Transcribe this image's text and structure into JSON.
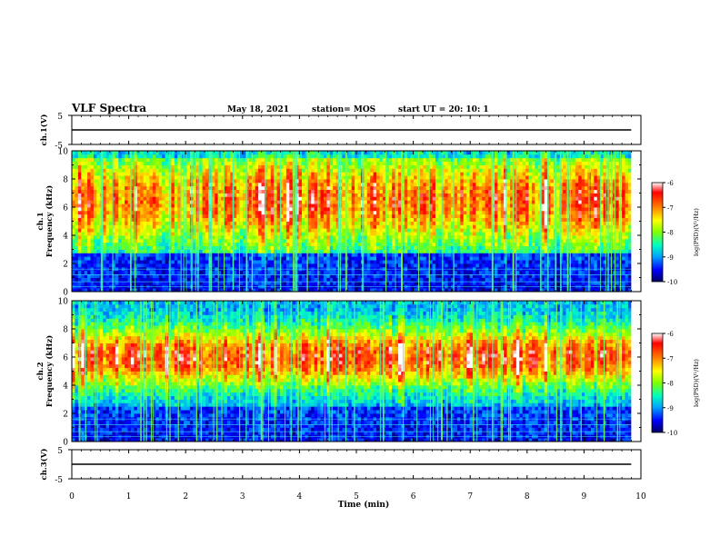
{
  "header": {
    "title": "VLF Spectra",
    "date": "May 18, 2021",
    "station": "station= MOS",
    "start_ut": "start UT =  20: 10: 1"
  },
  "chart_data": [
    {
      "type": "line",
      "panel": "ch1-voltage",
      "ylabel": "ch.1(V)",
      "ylim": [
        -5,
        5
      ],
      "y_ticks": [
        "5",
        "-5"
      ],
      "xlim": [
        0,
        10
      ],
      "series": [
        {
          "x_range": [
            0,
            9.83
          ],
          "baseline": 0
        }
      ]
    },
    {
      "type": "heatmap",
      "panel": "ch1-spectrogram",
      "ylabel": "ch.1\nFrequency (kHz)",
      "ylim": [
        0,
        10
      ],
      "y_ticks": [
        "0",
        "2",
        "4",
        "6",
        "8",
        "10"
      ],
      "xlim": [
        0,
        9.83
      ],
      "colorbar": {
        "label": "log(PSD)(V²/Hz)",
        "range": [
          -10,
          -6
        ],
        "ticks": [
          "-6",
          "-7",
          "-8",
          "-9",
          "-10"
        ],
        "colors": [
          "#000060",
          "#0000ff",
          "#00a0ff",
          "#00ffc0",
          "#80ff00",
          "#ffff00",
          "#ff8000",
          "#ff0000",
          "#ffffff"
        ]
      },
      "band_peak_khz": [
        4,
        9
      ]
    },
    {
      "type": "heatmap",
      "panel": "ch2-spectrogram",
      "ylabel": "ch.2\nFrequency (kHz)",
      "ylim": [
        0,
        10
      ],
      "y_ticks": [
        "0",
        "2",
        "4",
        "6",
        "8",
        "10"
      ],
      "xlim": [
        0,
        9.83
      ],
      "colorbar": {
        "label": "log(PSD)(V²/Hz)",
        "range": [
          -10,
          -6
        ],
        "ticks": [
          "-6",
          "-7",
          "-8",
          "-9",
          "-10"
        ],
        "colors": [
          "#000060",
          "#0000ff",
          "#00a0ff",
          "#00ffc0",
          "#80ff00",
          "#ffff00",
          "#ff8000",
          "#ff0000",
          "#ffffff"
        ]
      },
      "band_peak_khz": [
        4,
        8
      ]
    },
    {
      "type": "line",
      "panel": "ch3-voltage",
      "ylabel": "ch.3(V)",
      "ylim": [
        -5,
        5
      ],
      "y_ticks": [
        "5",
        "-5"
      ],
      "xlim": [
        0,
        10
      ],
      "series": [
        {
          "x_range": [
            0,
            9.83
          ],
          "baseline": 0
        }
      ]
    }
  ],
  "x_axis": {
    "label": "Time (min)",
    "ticks": [
      "0",
      "1",
      "2",
      "3",
      "4",
      "5",
      "6",
      "7",
      "8",
      "9",
      "10"
    ]
  }
}
